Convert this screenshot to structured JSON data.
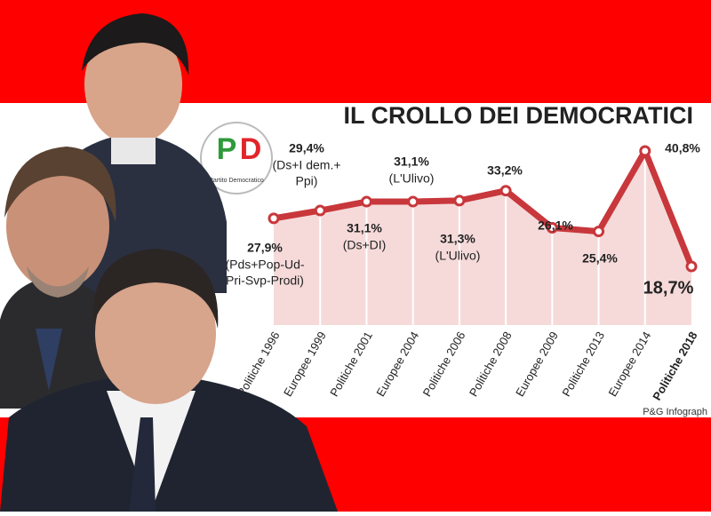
{
  "chart_data": {
    "type": "line",
    "title": "IL CROLLO DEI DEMOCRATICI",
    "source": "P&G Infograph",
    "categories": [
      "Politiche 1996",
      "Europee 1999",
      "Politiche 2001",
      "Europee 2004",
      "Politiche 2006",
      "Politiche 2008",
      "Europee 2009",
      "Politiche 2013",
      "Europee 2014",
      "Politiche 2018"
    ],
    "values": [
      27.9,
      29.4,
      31.1,
      31.1,
      31.3,
      33.2,
      26.1,
      25.4,
      40.8,
      18.7
    ],
    "value_labels": [
      "27,9%",
      "29,4%",
      "31,1%",
      "31,1%",
      "31,3%",
      "33,2%",
      "26,1%",
      "25,4%",
      "40,8%",
      "18,7%"
    ],
    "notes": [
      [
        "(Pds+Pop-Ud-",
        "Pri-Svp-Prodi)"
      ],
      [
        "(Ds+I dem.+",
        "Ppi)"
      ],
      [
        "(Ds+DI)"
      ],
      [
        "(L'Ulivo)"
      ],
      [
        "(L'Ulivo)"
      ],
      null,
      null,
      null,
      null,
      null
    ],
    "color": "#c8373b",
    "area_color": "#f6dada"
  },
  "logo": {
    "letters": [
      "P",
      "D"
    ],
    "name": "Partito Democratico"
  }
}
